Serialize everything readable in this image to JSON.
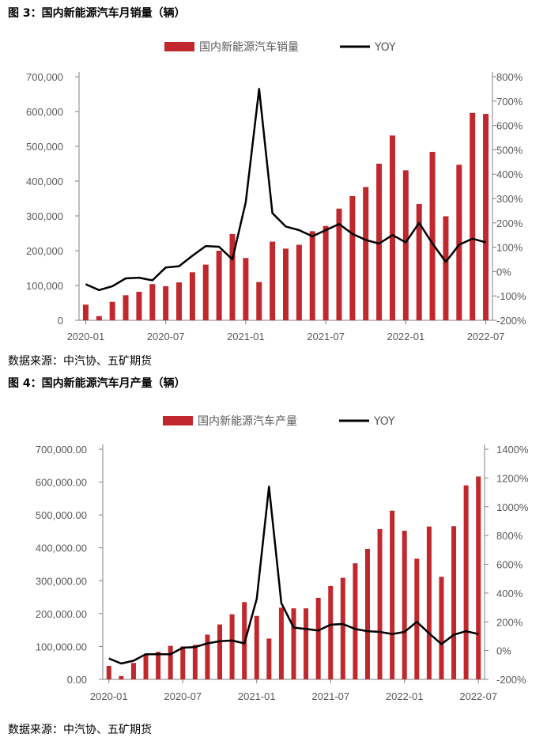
{
  "figures": [
    {
      "title": "图 3：国内新能源汽车月销量（辆）",
      "source": "数据来源：中汽协、五矿期货"
    },
    {
      "title": "图 4：国内新能源汽车月产量（辆）",
      "source": "数据来源：中汽协、五矿期货"
    }
  ],
  "colors": {
    "bar": "#C0282D",
    "line": "#000000",
    "axis": "#808080",
    "text": "#595959"
  },
  "chart_data": [
    {
      "type": "bar+line",
      "title": "图 3：国内新能源汽车月销量（辆）",
      "categories": [
        "2020-01",
        "2020-02",
        "2020-03",
        "2020-04",
        "2020-05",
        "2020-06",
        "2020-07",
        "2020-08",
        "2020-09",
        "2020-10",
        "2020-11",
        "2020-12",
        "2021-01",
        "2021-02",
        "2021-03",
        "2021-04",
        "2021-05",
        "2021-06",
        "2021-07",
        "2021-08",
        "2021-09",
        "2021-10",
        "2021-11",
        "2021-12",
        "2022-01",
        "2022-02",
        "2022-03",
        "2022-04",
        "2022-05",
        "2022-06",
        "2022-07"
      ],
      "series": [
        {
          "name": "国内新能源汽车销量",
          "type": "bar",
          "axis": "left",
          "values": [
            45000,
            12000,
            53000,
            72000,
            82000,
            104000,
            98000,
            109000,
            138000,
            160000,
            200000,
            248000,
            179000,
            110000,
            226000,
            206000,
            217000,
            256000,
            271000,
            321000,
            357000,
            383000,
            450000,
            531000,
            431000,
            334000,
            484000,
            299000,
            447000,
            596000,
            593000
          ]
        },
        {
          "name": "YOY",
          "type": "line",
          "axis": "right",
          "values": [
            -52,
            -76,
            -60,
            -28,
            -25,
            -36,
            17,
            22,
            65,
            105,
            102,
            50,
            285,
            750,
            240,
            185,
            170,
            145,
            170,
            195,
            155,
            130,
            115,
            150,
            120,
            200,
            115,
            40,
            110,
            135,
            120
          ]
        }
      ],
      "left_axis": {
        "min": 0,
        "max": 700000,
        "ticks": [
          "0",
          "100,000",
          "200,000",
          "300,000",
          "400,000",
          "500,000",
          "600,000",
          "700,000"
        ]
      },
      "right_axis": {
        "min": -200,
        "max": 800,
        "ticks": [
          "-200%",
          "-100%",
          "0%",
          "100%",
          "200%",
          "300%",
          "400%",
          "500%",
          "600%",
          "700%",
          "800%"
        ]
      },
      "x_tick_labels": [
        "2020-01",
        "2020-07",
        "2021-01",
        "2021-07",
        "2022-01",
        "2022-07"
      ],
      "legend": [
        "国内新能源汽车销量",
        "YOY"
      ]
    },
    {
      "type": "bar+line",
      "title": "图 4：国内新能源汽车月产量（辆）",
      "categories": [
        "2020-01",
        "2020-02",
        "2020-03",
        "2020-04",
        "2020-05",
        "2020-06",
        "2020-07",
        "2020-08",
        "2020-09",
        "2020-10",
        "2020-11",
        "2020-12",
        "2021-01",
        "2021-02",
        "2021-03",
        "2021-04",
        "2021-05",
        "2021-06",
        "2021-07",
        "2021-08",
        "2021-09",
        "2021-10",
        "2021-11",
        "2021-12",
        "2022-01",
        "2022-02",
        "2022-03",
        "2022-04",
        "2022-05",
        "2022-06",
        "2022-07"
      ],
      "series": [
        {
          "name": "国内新能源汽车产量",
          "type": "bar",
          "axis": "left",
          "values": [
            41000,
            10000,
            50000,
            75000,
            84000,
            102000,
            100000,
            105000,
            136000,
            167000,
            198000,
            235000,
            193000,
            124000,
            218000,
            216000,
            216000,
            248000,
            284000,
            309000,
            353000,
            397000,
            457000,
            513000,
            452000,
            367000,
            465000,
            312000,
            466000,
            590000,
            617000
          ]
        },
        {
          "name": "YOY",
          "type": "line",
          "axis": "right",
          "values": [
            -55,
            -90,
            -70,
            -25,
            -25,
            -25,
            20,
            25,
            50,
            65,
            70,
            50,
            360,
            1140,
            330,
            160,
            150,
            140,
            180,
            185,
            150,
            135,
            130,
            115,
            130,
            200,
            120,
            45,
            110,
            135,
            115
          ]
        }
      ],
      "left_axis": {
        "min": 0,
        "max": 700000,
        "ticks": [
          "0.00",
          "100,000.00",
          "200,000.00",
          "300,000.00",
          "400,000.00",
          "500,000.00",
          "600,000.00",
          "700,000.00"
        ]
      },
      "right_axis": {
        "min": -200,
        "max": 1400,
        "ticks": [
          "-200%",
          "0%",
          "200%",
          "400%",
          "600%",
          "800%",
          "1000%",
          "1200%",
          "1400%"
        ]
      },
      "x_tick_labels": [
        "2020-01",
        "2020-07",
        "2021-01",
        "2021-07",
        "2022-01",
        "2022-07"
      ],
      "legend": [
        "国内新能源汽车产量",
        "YOY"
      ]
    }
  ]
}
